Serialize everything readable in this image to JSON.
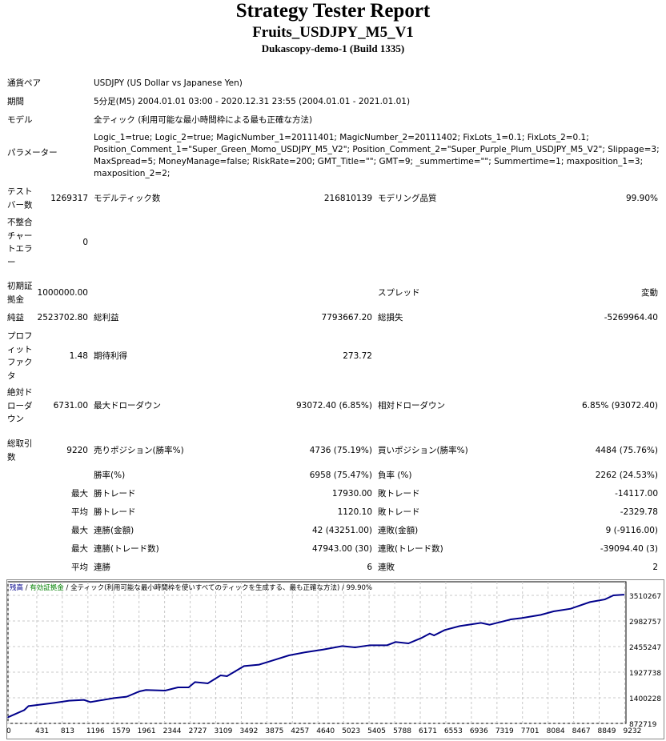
{
  "header": {
    "title": "Strategy Tester Report",
    "subtitle": "Fruits_USDJPY_M5_V1",
    "server": "Dukascopy-demo-1 (Build 1335)"
  },
  "info": [
    {
      "label": "通貨ペア",
      "value": "USDJPY (US Dollar vs Japanese Yen)"
    },
    {
      "label": "期間",
      "value": "5分足(M5) 2004.01.01 03:00 - 2020.12.31 23:55 (2004.01.01 - 2021.01.01)"
    },
    {
      "label": "モデル",
      "value": "全ティック (利用可能な最小時間枠による最も正確な方法)"
    },
    {
      "label": "パラメーター",
      "lines": [
        "Logic_1=true; Logic_2=true; MagicNumber_1=20111401; MagicNumber_2=20111402; FixLots_1=0.1; FixLots_2=0.1;",
        "Position_Comment_1=\"Super_Green_Momo_USDJPY_M5_V2\"; Position_Comment_2=\"Super_Purple_Plum_USDJPY_M5_V2\"; Slippage=3;",
        "MaxSpread=5; MoneyManage=false; RiskRate=200; GMT_Title=\"\"; GMT=9; _summertime=\"\"; Summertime=1; maxposition_1=3;",
        "maxposition_2=2;"
      ]
    }
  ],
  "stats": {
    "bars": {
      "label": "テストバー数",
      "value": "1269317",
      "l2": "モデルティック数",
      "v2": "216810139",
      "l3": "モデリング品質",
      "v3": "99.90%"
    },
    "mismatch": {
      "label": "不整合チャートエラー",
      "value": "0"
    },
    "deposit": {
      "label": "初期証拠金",
      "value": "1000000.00",
      "l3": "スプレッド",
      "v3": "変動"
    },
    "net": {
      "label": "純益",
      "value": "2523702.80",
      "l2": "総利益",
      "v2": "7793667.20",
      "l3": "総損失",
      "v3": "-5269964.40"
    },
    "pf": {
      "label": "プロフィットファクタ",
      "value": "1.48",
      "l2": "期待利得",
      "v2": "273.72"
    },
    "dd": {
      "label": "絶対ドローダウン",
      "value": "6731.00",
      "l2": "最大ドローダウン",
      "v2": "93072.40 (6.85%)",
      "l3": "相対ドローダウン",
      "v3": "6.85% (93072.40)"
    },
    "trades": {
      "label": "総取引数",
      "value": "9220",
      "l2": "売りポジション(勝率%)",
      "v2": "4736 (75.19%)",
      "l3": "買いポジション(勝率%)",
      "v3": "4484 (75.76%)"
    },
    "rows": [
      {
        "pre": "",
        "l2": "勝率(%)",
        "v2": "6958 (75.47%)",
        "l3": "負率 (%)",
        "v3": "2262 (24.53%)"
      },
      {
        "pre": "最大",
        "l2": "勝トレード",
        "v2": "17930.00",
        "l3": "敗トレード",
        "v3": "-14117.00"
      },
      {
        "pre": "平均",
        "l2": "勝トレード",
        "v2": "1120.10",
        "l3": "敗トレード",
        "v3": "-2329.78"
      },
      {
        "pre": "最大",
        "l2": "連勝(金額)",
        "v2": "42 (43251.00)",
        "l3": "連敗(金額)",
        "v3": "9 (-9116.00)"
      },
      {
        "pre": "最大",
        "l2": "連勝(トレード数)",
        "v2": "47943.00 (30)",
        "l3": "連敗(トレード数)",
        "v3": "-39094.40 (3)"
      },
      {
        "pre": "平均",
        "l2": "連勝",
        "v2": "6",
        "l3": "連敗",
        "v3": "2"
      }
    ]
  },
  "chart_data": {
    "type": "line",
    "legend": {
      "balance": "残高",
      "equity": "有効証拠金",
      "model": "全ティック(利用可能な最小時間枠を使いすべてのティックを生成する、最も正確な方法)",
      "quality": "99.90%",
      "sep": " / "
    },
    "colors": {
      "balance": "#00008b",
      "equity": "#008000",
      "grid": "#c8c8c8"
    },
    "x_ticks": [
      0,
      431,
      813,
      1196,
      1579,
      1961,
      2344,
      2727,
      3109,
      3492,
      3875,
      4257,
      4640,
      5023,
      5405,
      5788,
      6171,
      6553,
      6936,
      7319,
      7701,
      8084,
      8467,
      8849,
      9232
    ],
    "y_ticks": [
      872719,
      1400228,
      1927738,
      2455247,
      2982757,
      3510267
    ],
    "xlim": [
      0,
      9250
    ],
    "ylim": [
      872719,
      3642000
    ],
    "grid": true,
    "series": [
      {
        "x": [
          0,
          243,
          307,
          690,
          914,
          1137,
          1233,
          1585,
          1777,
          1968,
          2064,
          2352,
          2543,
          2703,
          2799,
          2990,
          3182,
          3278,
          3533,
          3757,
          3949,
          4205,
          4460,
          4716,
          5003,
          5195,
          5419,
          5674,
          5802,
          5994,
          6186,
          6313,
          6377,
          6537,
          6761,
          7080,
          7208,
          7527,
          7687,
          7975,
          8166,
          8422,
          8710,
          8934,
          9062,
          9220
        ],
        "y": [
          1000000,
          1147000,
          1230000,
          1296000,
          1340000,
          1356000,
          1312000,
          1394000,
          1422000,
          1532000,
          1560000,
          1549000,
          1614000,
          1614000,
          1724000,
          1697000,
          1862000,
          1845000,
          2054000,
          2082000,
          2164000,
          2274000,
          2340000,
          2394000,
          2466000,
          2438000,
          2483000,
          2483000,
          2549000,
          2521000,
          2631000,
          2724000,
          2686000,
          2796000,
          2878000,
          2944000,
          2905000,
          3015000,
          3043000,
          3109000,
          3181000,
          3235000,
          3372000,
          3427000,
          3510000,
          3523703
        ]
      }
    ]
  }
}
